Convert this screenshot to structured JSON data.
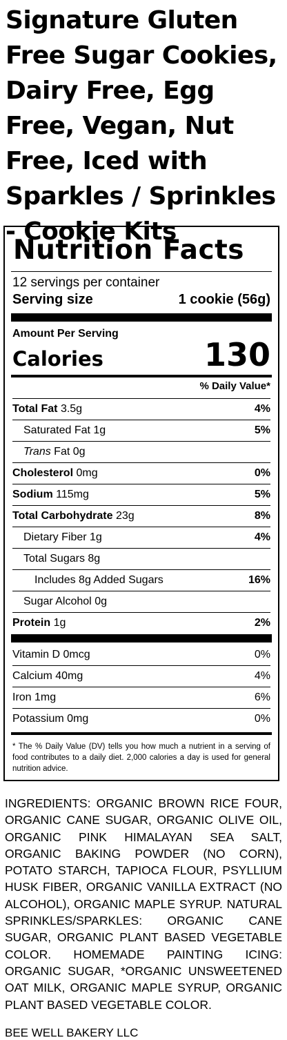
{
  "product_title": "Signature Gluten Free Sugar Cookies, Dairy Free, Egg Free, Vegan, Nut Free, Iced with Sparkles / Sprinkles - Cookie Kits",
  "label": {
    "heading": "Nutrition Facts",
    "servings_per_container": "12 servings per container",
    "serving_size_label": "Serving size",
    "serving_size_value": "1 cookie (56g)",
    "amount_per_serving": "Amount Per Serving",
    "calories_label": "Calories",
    "calories_value": "130",
    "daily_value_header": "% Daily Value*",
    "nutrients": [
      {
        "name": "Total Fat",
        "amount": "3.5g",
        "dv": "4%"
      },
      {
        "name": "Saturated Fat",
        "amount": "1g",
        "dv": "5%"
      },
      {
        "name": "Trans",
        "name_suffix": "Fat",
        "amount": "0g",
        "dv": ""
      },
      {
        "name": "Cholesterol",
        "amount": "0mg",
        "dv": "0%"
      },
      {
        "name": "Sodium",
        "amount": "115mg",
        "dv": "5%"
      },
      {
        "name": "Total Carbohydrate",
        "amount": "23g",
        "dv": "8%"
      },
      {
        "name": "Dietary Fiber",
        "amount": "1g",
        "dv": "4%"
      },
      {
        "name": "Total Sugars",
        "amount": "8g",
        "dv": ""
      },
      {
        "name": "Includes 8g Added Sugars",
        "amount": "",
        "dv": "16%"
      },
      {
        "name": "Sugar Alcohol",
        "amount": "0g",
        "dv": ""
      },
      {
        "name": "Protein",
        "amount": "1g",
        "dv": "2%"
      }
    ],
    "vitamins": [
      {
        "name": "Vitamin D",
        "amount": "0mcg",
        "dv": "0%"
      },
      {
        "name": "Calcium",
        "amount": "40mg",
        "dv": "4%"
      },
      {
        "name": "Iron",
        "amount": "1mg",
        "dv": "6%"
      },
      {
        "name": "Potassium",
        "amount": "0mg",
        "dv": "0%"
      }
    ],
    "footnote": "* The % Daily Value (DV) tells you how much a nutrient in a serving of food contributes to a daily diet. 2,000 calories a day is used for general nutrition advice."
  },
  "ingredients": "INGREDIENTS: ORGANIC BROWN RICE FOUR, ORGANIC CANE SUGAR, ORGANIC OLIVE OIL, ORGANIC PINK HIMALAYAN SEA SALT, ORGANIC BAKING POWDER (NO CORN), POTATO STARCH, TAPIOCA FLOUR, PSYLLIUM HUSK FIBER, ORGANIC VANILLA EXTRACT (NO ALCOHOL), ORGANIC MAPLE SYRUP. NATURAL SPRINKLES/SPARKLES: ORGANIC CANE SUGAR, ORGANIC PLANT BASED VEGETABLE COLOR. HOMEMADE PAINTING ICING: ORGANIC SUGAR, *ORGANIC UNSWEETENED OAT MILK, ORGANIC MAPLE SYRUP, ORGANIC PLANT BASED VEGETABLE COLOR.",
  "cutoff_text": "BEE WELL BAKERY LLC"
}
